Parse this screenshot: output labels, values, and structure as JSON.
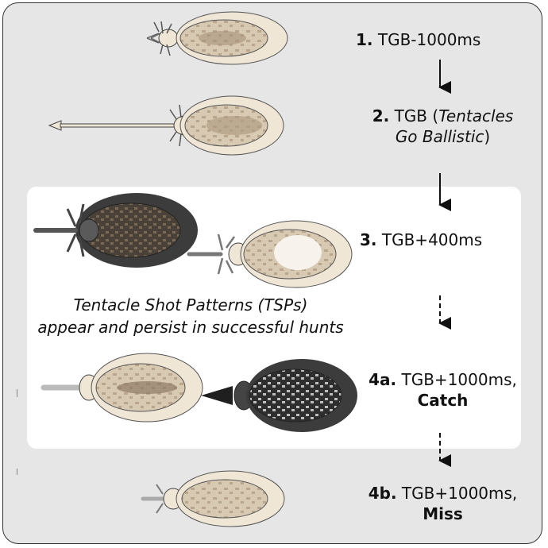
{
  "steps": [
    {
      "num": "1.",
      "text": "TGB-1000ms"
    },
    {
      "num": "2.",
      "text": "TGB (",
      "italic": "Tentacles Go Ballistic",
      "italic_1": "Tentacles",
      "italic_2": "Go Ballistic",
      "close": ")"
    },
    {
      "num": "3.",
      "text": "TGB+400ms"
    },
    {
      "num": "4a.",
      "text": "TGB+1000ms,",
      "outcome": "Catch"
    },
    {
      "num": "4b.",
      "text": "TGB+1000ms,",
      "outcome": "Miss"
    }
  ],
  "annotation": {
    "line1": "Tentacle Shot Patterns (TSPs)",
    "line2": "appear and persist in successful hunts"
  },
  "colors": {
    "frame_bg": "#e6e6e6",
    "panel_bg": "#ffffff",
    "skin_light": "#efe6d6",
    "skin_mid": "#cbbba3",
    "skin_brown": "#8a7560",
    "dark_body": "#3a3a3a"
  }
}
